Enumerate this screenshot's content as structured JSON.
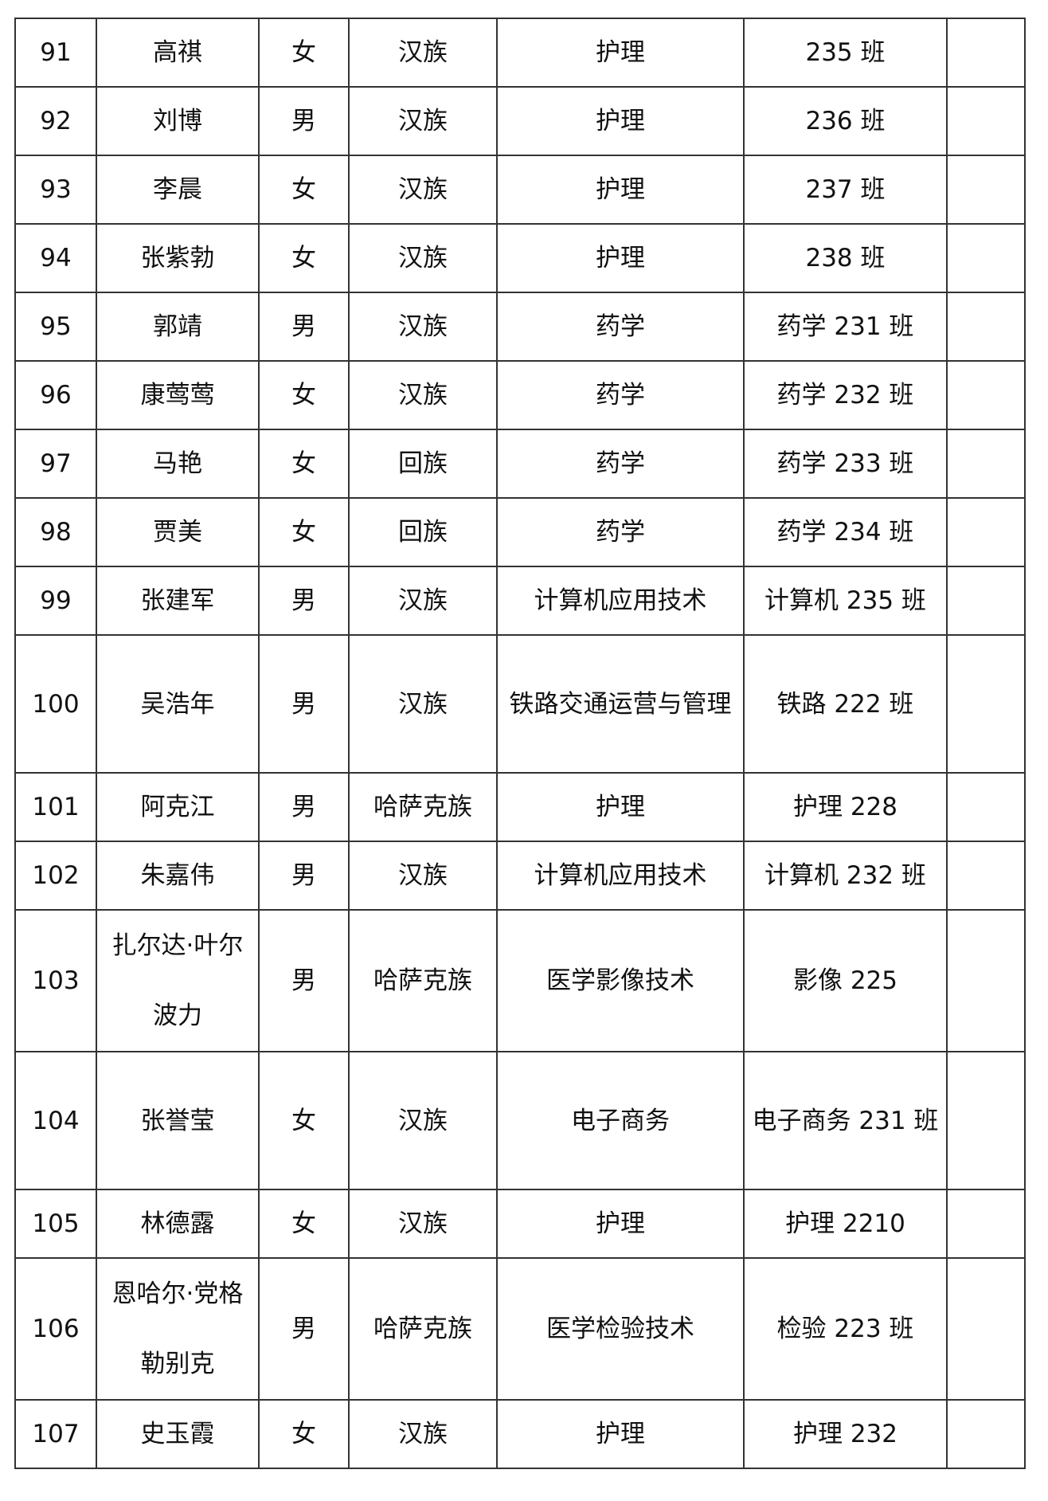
{
  "rows": [
    {
      "no": "91",
      "name": "高祺",
      "gender": "女",
      "ethnicity": "汉族",
      "major": "护理",
      "class": "235 班",
      "note": ""
    },
    {
      "no": "92",
      "name": "刘博",
      "gender": "男",
      "ethnicity": "汉族",
      "major": "护理",
      "class": "236 班",
      "note": ""
    },
    {
      "no": "93",
      "name": "李晨",
      "gender": "女",
      "ethnicity": "汉族",
      "major": "护理",
      "class": "237 班",
      "note": ""
    },
    {
      "no": "94",
      "name": "张紫勃",
      "gender": "女",
      "ethnicity": "汉族",
      "major": "护理",
      "class": "238 班",
      "note": ""
    },
    {
      "no": "95",
      "name": "郭靖",
      "gender": "男",
      "ethnicity": "汉族",
      "major": "药学",
      "class": "药学 231 班",
      "note": ""
    },
    {
      "no": "96",
      "name": "康莺莺",
      "gender": "女",
      "ethnicity": "汉族",
      "major": "药学",
      "class": "药学 232 班",
      "note": ""
    },
    {
      "no": "97",
      "name": "马艳",
      "gender": "女",
      "ethnicity": "回族",
      "major": "药学",
      "class": "药学 233 班",
      "note": ""
    },
    {
      "no": "98",
      "name": "贾美",
      "gender": "女",
      "ethnicity": "回族",
      "major": "药学",
      "class": "药学 234 班",
      "note": ""
    },
    {
      "no": "99",
      "name": "张建军",
      "gender": "男",
      "ethnicity": "汉族",
      "major": "计算机应用技术",
      "class": "计算机 235 班",
      "note": ""
    },
    {
      "no": "100",
      "name": "吴浩年",
      "gender": "男",
      "ethnicity": "汉族",
      "major": "铁路交通运营与管理",
      "class": "铁路 222 班",
      "note": ""
    },
    {
      "no": "101",
      "name": "阿克江",
      "gender": "男",
      "ethnicity": "哈萨克族",
      "major": "护理",
      "class": "护理 228",
      "note": ""
    },
    {
      "no": "102",
      "name": "朱嘉伟",
      "gender": "男",
      "ethnicity": "汉族",
      "major": "计算机应用技术",
      "class": "计算机 232 班",
      "note": ""
    },
    {
      "no": "103",
      "name": "扎尔达·叶尔波力",
      "gender": "男",
      "ethnicity": "哈萨克族",
      "major": "医学影像技术",
      "class": "影像 225",
      "note": ""
    },
    {
      "no": "104",
      "name": "张誉莹",
      "gender": "女",
      "ethnicity": "汉族",
      "major": "电子商务",
      "class": "电子商务 231 班",
      "note": ""
    },
    {
      "no": "105",
      "name": "林德露",
      "gender": "女",
      "ethnicity": "汉族",
      "major": "护理",
      "class": "护理 2210",
      "note": ""
    },
    {
      "no": "106",
      "name": "恩哈尔·党格勒别克",
      "gender": "男",
      "ethnicity": "哈萨克族",
      "major": "医学检验技术",
      "class": "检验 223 班",
      "note": ""
    },
    {
      "no": "107",
      "name": "史玉霞",
      "gender": "女",
      "ethnicity": "汉族",
      "major": "护理",
      "class": "护理 232",
      "note": ""
    }
  ]
}
